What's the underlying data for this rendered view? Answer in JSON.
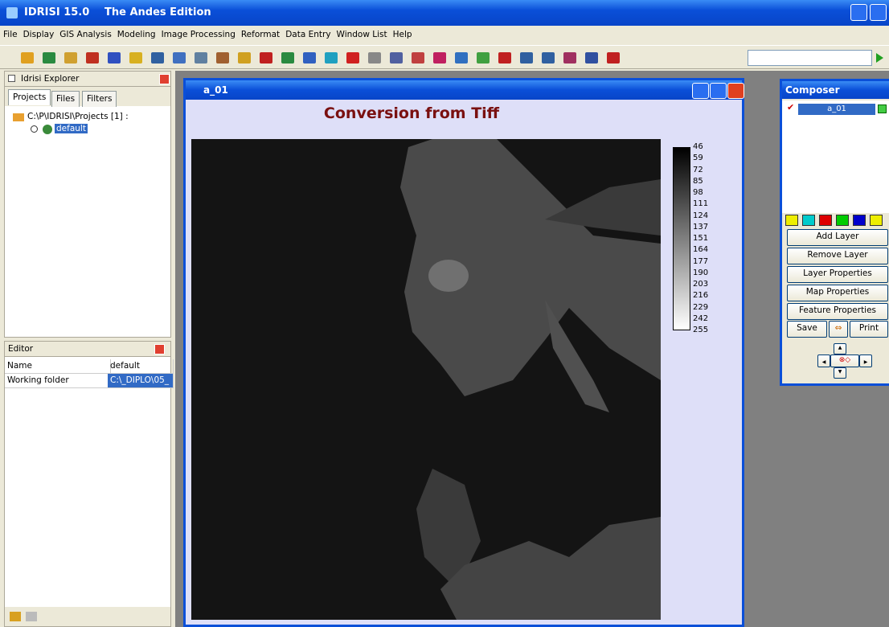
{
  "app": {
    "name": "IDRISI 15.0",
    "edition": "The Andes Edition"
  },
  "menu": [
    "File",
    "Display",
    "GIS Analysis",
    "Modeling",
    "Image Processing",
    "Reformat",
    "Data Entry",
    "Window List",
    "Help"
  ],
  "explorer": {
    "title": "Idrisi Explorer",
    "tabs": [
      "Projects",
      "Files",
      "Filters"
    ],
    "tree": {
      "root": "C:\\P\\IDRISI\\Projects [1] :",
      "child": "default"
    }
  },
  "editor": {
    "title": "Editor",
    "rows": [
      [
        "Name",
        "default"
      ],
      [
        "Working folder",
        "C:\\_DIPLO\\05_"
      ]
    ]
  },
  "map_window": {
    "title": "a_01",
    "map_title": "Conversion from Tiff",
    "legend": [
      46,
      59,
      72,
      85,
      98,
      111,
      124,
      137,
      151,
      164,
      177,
      190,
      203,
      216,
      229,
      242,
      255
    ]
  },
  "composer": {
    "title": "Composer",
    "layer": "a_01",
    "buttons": [
      "Add Layer",
      "Remove Layer",
      "Layer Properties",
      "Map Properties",
      "Feature Properties"
    ],
    "save": "Save",
    "print": "Print"
  }
}
